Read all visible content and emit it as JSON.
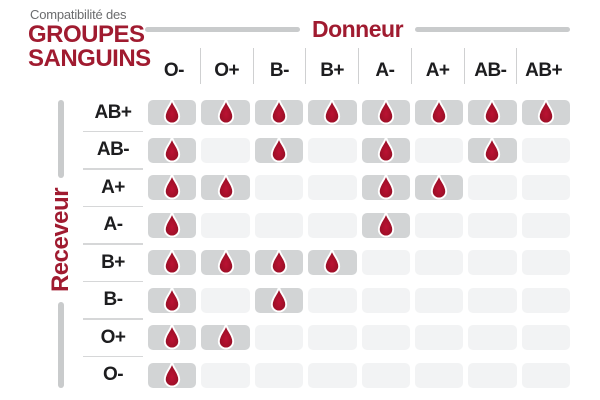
{
  "title": {
    "pretitle": "Compatibilité des",
    "line1": "GROUPES",
    "line2": "SANGUINS"
  },
  "axes": {
    "donor_label": "Donneur",
    "receiver_label": "Receveur"
  },
  "colors": {
    "brand_red": "#A01B30",
    "drop_center": "#B41236",
    "drop_edge": "#8C0E26",
    "drop_outline": "#FFFFFF",
    "cell_filled": "#D2D4D5",
    "cell_empty": "#F2F3F4",
    "line_gray": "#C9CBCC",
    "divider_gray": "#D6D7D8",
    "label_text": "#1D1D1F",
    "pretitle_gray": "#6B6C6E"
  },
  "icons": {
    "compatible_marker": "blood-drop-icon"
  },
  "chart_data": {
    "type": "heatmap",
    "title": "Compatibilité des GROUPES SANGUINS",
    "x_axis_label": "Donneur",
    "y_axis_label": "Receveur",
    "columns": [
      "O-",
      "O+",
      "B-",
      "B+",
      "A-",
      "A+",
      "AB-",
      "AB+"
    ],
    "rows": [
      "AB+",
      "AB-",
      "A+",
      "A-",
      "B+",
      "B-",
      "O+",
      "O-"
    ],
    "matrix": [
      [
        1,
        1,
        1,
        1,
        1,
        1,
        1,
        1
      ],
      [
        1,
        0,
        1,
        0,
        1,
        0,
        1,
        0
      ],
      [
        1,
        1,
        0,
        0,
        1,
        1,
        0,
        0
      ],
      [
        1,
        0,
        0,
        0,
        1,
        0,
        0,
        0
      ],
      [
        1,
        1,
        1,
        1,
        0,
        0,
        0,
        0
      ],
      [
        1,
        0,
        1,
        0,
        0,
        0,
        0,
        0
      ],
      [
        1,
        1,
        0,
        0,
        0,
        0,
        0,
        0
      ],
      [
        1,
        0,
        0,
        0,
        0,
        0,
        0,
        0
      ]
    ],
    "cell_meaning": "1 = drop icon shown (donor compatible with receiver), 0 = empty cell",
    "legend_position": "none",
    "grid": "off"
  }
}
